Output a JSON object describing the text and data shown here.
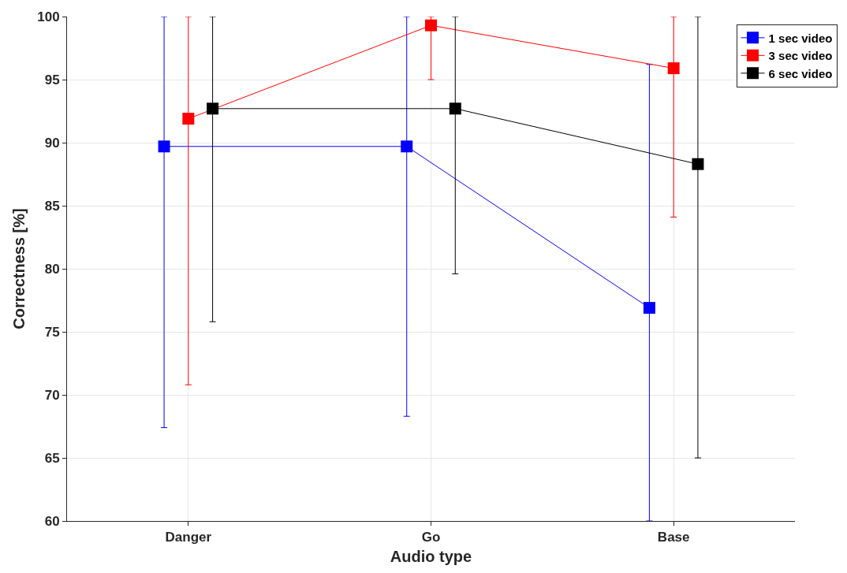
{
  "chart_data": {
    "type": "line",
    "xlabel": "Audio type",
    "ylabel": "Correctness [%]",
    "categories": [
      "Danger",
      "Go",
      "Base"
    ],
    "series": [
      {
        "name": "1 sec video",
        "color": "#0000ff",
        "values": [
          89.7,
          89.7,
          76.9
        ],
        "errors": [
          [
            67.4,
            100
          ],
          [
            68.3,
            100
          ],
          [
            60,
            96.2
          ]
        ]
      },
      {
        "name": "3 sec video",
        "color": "#ff0000",
        "values": [
          91.9,
          99.3,
          95.9
        ],
        "errors": [
          [
            70.8,
            100
          ],
          [
            95.0,
            100
          ],
          [
            84.1,
            100
          ]
        ]
      },
      {
        "name": "6 sec video",
        "color": "#000000",
        "values": [
          92.7,
          92.7,
          88.3
        ],
        "errors": [
          [
            75.8,
            100
          ],
          [
            79.6,
            100
          ],
          [
            65.0,
            100
          ]
        ]
      }
    ],
    "ylim": [
      60,
      100
    ],
    "yticks": [
      60,
      65,
      70,
      75,
      80,
      85,
      90,
      95,
      100
    ],
    "grid": true,
    "legend": "top right",
    "marker": "square",
    "line_style": "solid"
  }
}
